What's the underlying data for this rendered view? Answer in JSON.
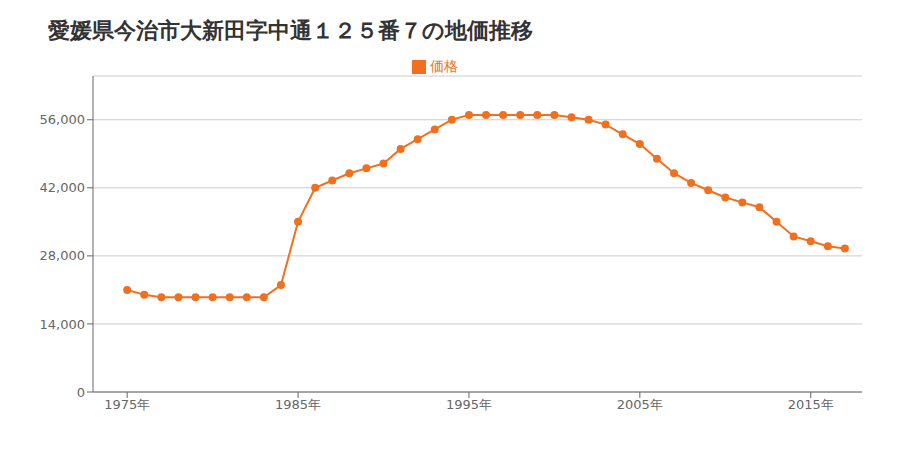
{
  "chart_data": {
    "type": "line",
    "title": "愛媛県今治市大新田字中通１２５番７の地価推移",
    "x": [
      1975,
      1976,
      1977,
      1978,
      1979,
      1980,
      1981,
      1982,
      1983,
      1984,
      1985,
      1986,
      1987,
      1988,
      1989,
      1990,
      1991,
      1992,
      1993,
      1994,
      1995,
      1996,
      1997,
      1998,
      1999,
      2000,
      2001,
      2002,
      2003,
      2004,
      2005,
      2006,
      2007,
      2008,
      2009,
      2010,
      2011,
      2012,
      2013,
      2014,
      2015,
      2016,
      2017
    ],
    "series": [
      {
        "name": "価格",
        "color": "#F07020",
        "marker": "circle",
        "values": [
          21000,
          20000,
          19500,
          19500,
          19500,
          19500,
          19500,
          19500,
          19500,
          22000,
          35000,
          42000,
          43500,
          45000,
          46000,
          47000,
          50000,
          52000,
          54000,
          56000,
          57000,
          57000,
          57000,
          57000,
          57000,
          57000,
          56500,
          56000,
          55000,
          53000,
          51000,
          48000,
          45000,
          43000,
          41500,
          40000,
          39000,
          38000,
          35000,
          32000,
          31000,
          30000,
          29500
        ]
      }
    ],
    "xlim": [
      1973,
      2018
    ],
    "xticks": [
      {
        "value": 1975,
        "label": "1975年"
      },
      {
        "value": 1985,
        "label": "1985年"
      },
      {
        "value": 1995,
        "label": "1995年"
      },
      {
        "value": 2005,
        "label": "2005年"
      },
      {
        "value": 2015,
        "label": "2015年"
      }
    ],
    "ylim": [
      0,
      65000
    ],
    "yticks": [
      0,
      {
        "value": 14000,
        "label": "14,000"
      },
      {
        "value": 28000,
        "label": "28,000"
      },
      {
        "value": 42000,
        "label": "42,000"
      },
      {
        "value": 56000,
        "label": "56,000"
      }
    ],
    "grid": "y",
    "legend": "top"
  }
}
